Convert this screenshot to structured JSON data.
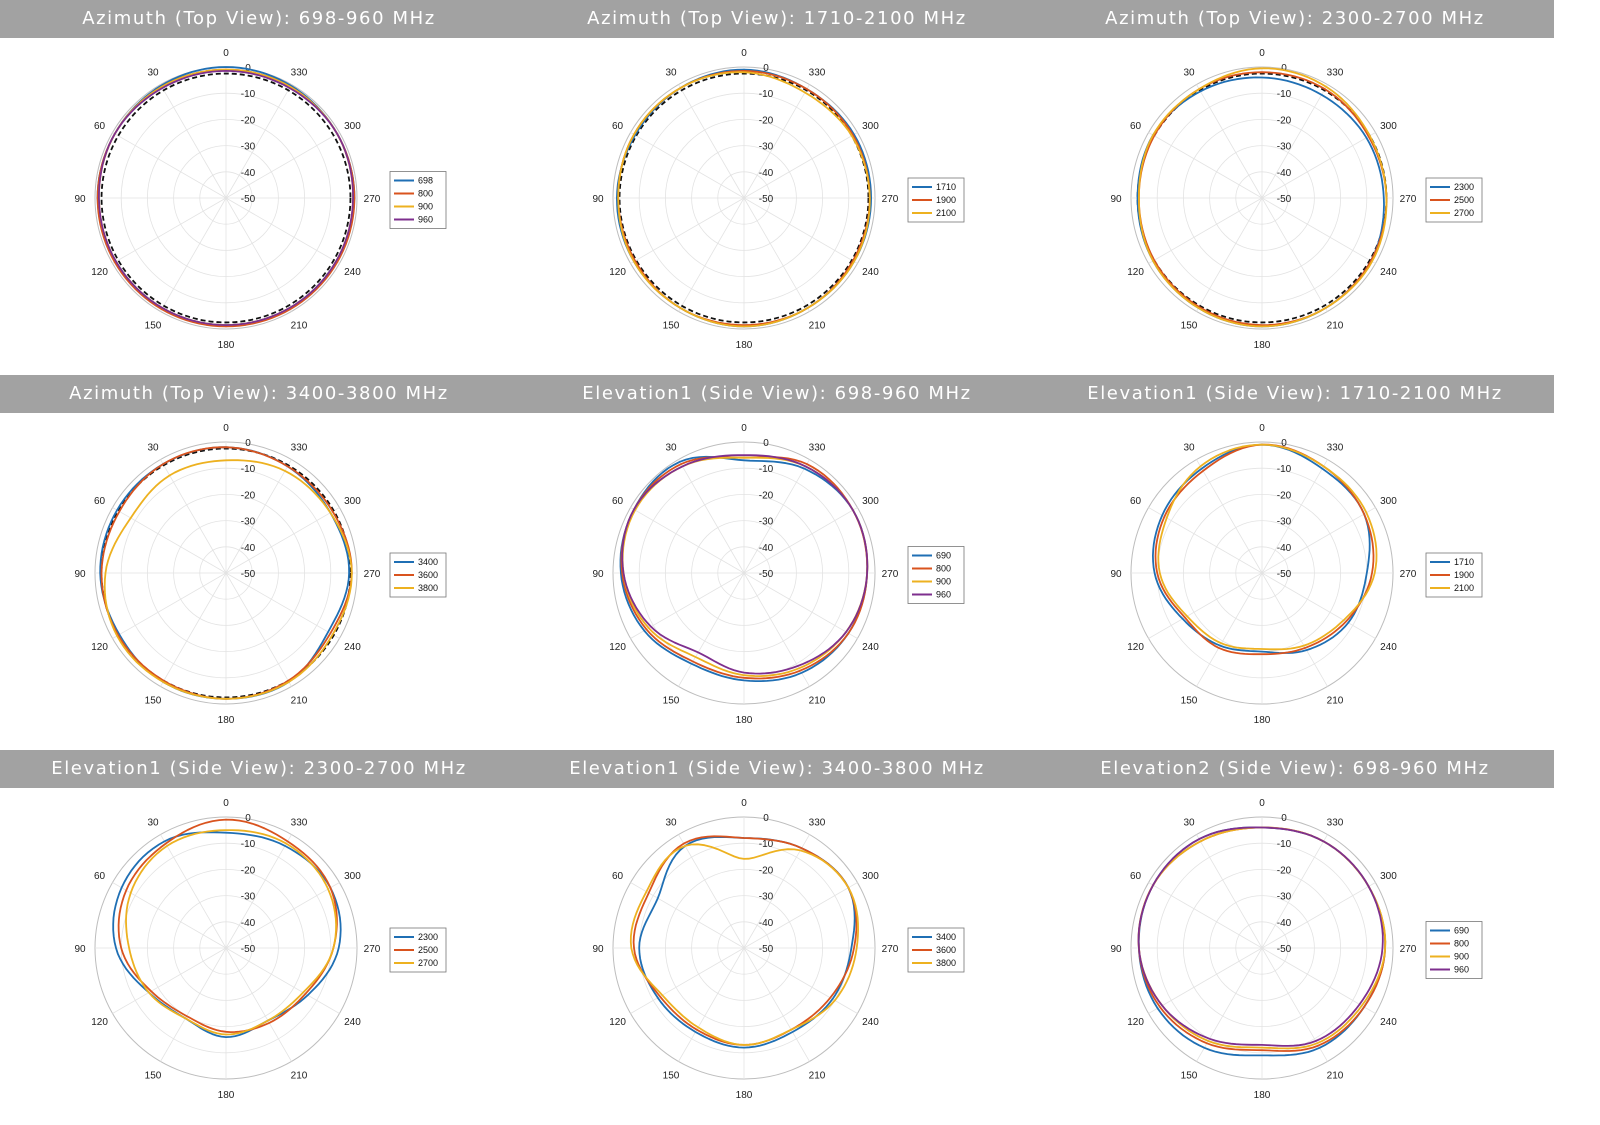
{
  "chart_data": [
    {
      "type": "line",
      "subtype": "polar",
      "title": "Azimuth (Top View): 698-960 MHz",
      "theta_ticks": [
        "0",
        "30",
        "60",
        "90",
        "120",
        "150",
        "180",
        "210",
        "240",
        "270",
        "300",
        "330"
      ],
      "r_ticks": [
        "0",
        "-10",
        "-20",
        "-30",
        "-40",
        "-50"
      ],
      "r_range": [
        -50,
        0
      ],
      "grid": true,
      "legend_position": "right",
      "reference_dashed_circle_db": -2.5,
      "series": [
        {
          "name": "698",
          "color": "#1f6fb4",
          "r": [
            0,
            -0.5,
            -1,
            -1,
            -1.5,
            -1.5,
            -1.5,
            -1.5,
            -1.5,
            -1,
            -1,
            -0.5
          ]
        },
        {
          "name": "800",
          "color": "#d9531e",
          "r": [
            -1,
            -1,
            -1,
            -1,
            -1,
            -1,
            -1,
            -1,
            -1,
            -1,
            -1,
            -1
          ]
        },
        {
          "name": "900",
          "color": "#edb120",
          "r": [
            -1,
            -1,
            -1,
            -1.5,
            -1.5,
            -1.5,
            -1.5,
            -1.5,
            -1.5,
            -1.5,
            -1,
            -1
          ]
        },
        {
          "name": "960",
          "color": "#7e2f8e",
          "r": [
            -1.5,
            -1.5,
            -1,
            -1.5,
            -1.5,
            -1.5,
            -1.5,
            -1.5,
            -1.5,
            -1.5,
            -1,
            -1.5
          ]
        }
      ]
    },
    {
      "type": "line",
      "subtype": "polar",
      "title": "Azimuth (Top View): 1710-2100 MHz",
      "theta_ticks": [
        "0",
        "30",
        "60",
        "90",
        "120",
        "150",
        "180",
        "210",
        "240",
        "270",
        "300",
        "330"
      ],
      "r_ticks": [
        "0",
        "-10",
        "-20",
        "-30",
        "-40",
        "-50"
      ],
      "r_range": [
        -50,
        0
      ],
      "grid": true,
      "legend_position": "right",
      "reference_dashed_circle_db": -2.5,
      "series": [
        {
          "name": "1710",
          "color": "#1f6fb4",
          "r": [
            -1,
            -1.5,
            -2,
            -1.5,
            -1.5,
            -1.5,
            -1,
            -1.5,
            -1.5,
            -1.5,
            -1.5,
            -2
          ]
        },
        {
          "name": "1900",
          "color": "#d9531e",
          "r": [
            -1.5,
            -1.5,
            -1.5,
            -2,
            -2,
            -1.5,
            -1.5,
            -1.5,
            -2,
            -2,
            -2,
            -2
          ]
        },
        {
          "name": "2100",
          "color": "#edb120",
          "r": [
            -2,
            -1.5,
            -1.5,
            -2,
            -1.5,
            -1.5,
            -1,
            -1.5,
            -1.5,
            -2,
            -2.5,
            -3.5
          ]
        }
      ]
    },
    {
      "type": "line",
      "subtype": "polar",
      "title": "Azimuth (Top View): 2300-2700 MHz",
      "theta_ticks": [
        "0",
        "30",
        "60",
        "90",
        "120",
        "150",
        "180",
        "210",
        "240",
        "270",
        "300",
        "330"
      ],
      "r_ticks": [
        "0",
        "-10",
        "-20",
        "-30",
        "-40",
        "-50"
      ],
      "r_range": [
        -50,
        0
      ],
      "grid": true,
      "legend_position": "right",
      "reference_dashed_circle_db": -2.5,
      "series": [
        {
          "name": "2300",
          "color": "#1f6fb4",
          "r": [
            -4,
            -3,
            -2,
            -2.5,
            -2,
            -1.5,
            -1,
            -1.5,
            -2,
            -3.5,
            -4,
            -4.5
          ]
        },
        {
          "name": "2500",
          "color": "#d9531e",
          "r": [
            -2,
            -2,
            -2.5,
            -3,
            -2.5,
            -2,
            -1.5,
            -1.5,
            -2,
            -2.5,
            -3,
            -2
          ]
        },
        {
          "name": "2700",
          "color": "#edb120",
          "r": [
            -0.5,
            -2,
            -2,
            -3,
            -2,
            -1.5,
            -1,
            -1.5,
            -1.5,
            -2.5,
            -2.5,
            -1
          ]
        }
      ]
    },
    {
      "type": "line",
      "subtype": "polar",
      "title": "Azimuth (Top View): 3400-3800 MHz",
      "theta_ticks": [
        "0",
        "30",
        "60",
        "90",
        "120",
        "150",
        "180",
        "210",
        "240",
        "270",
        "300",
        "330"
      ],
      "r_ticks": [
        "0",
        "-10",
        "-20",
        "-30",
        "-40",
        "-50"
      ],
      "r_range": [
        -50,
        0
      ],
      "grid": true,
      "legend_position": "right",
      "reference_dashed_circle_db": -2.5,
      "series": [
        {
          "name": "3400",
          "color": "#1f6fb4",
          "r": [
            -2,
            -2,
            -2,
            -2,
            -3,
            -2,
            -2,
            -2,
            -5,
            -3,
            -4,
            -3
          ]
        },
        {
          "name": "3600",
          "color": "#d9531e",
          "r": [
            -2,
            -2,
            -3,
            -2.5,
            -2.5,
            -2.5,
            -2,
            -2.5,
            -4,
            -2,
            -3,
            -3
          ]
        },
        {
          "name": "3800",
          "color": "#edb120",
          "r": [
            -7,
            -7,
            -8,
            -4,
            -2,
            -2,
            -2,
            -2,
            -3,
            -2,
            -4,
            -5
          ]
        }
      ]
    },
    {
      "type": "line",
      "subtype": "polar",
      "title": "Elevation1 (Side View): 698-960 MHz",
      "theta_ticks": [
        "0",
        "30",
        "60",
        "90",
        "120",
        "150",
        "180",
        "210",
        "240",
        "270",
        "300",
        "330"
      ],
      "r_ticks": [
        "0",
        "-10",
        "-20",
        "-30",
        "-40",
        "-50"
      ],
      "r_range": [
        -50,
        0
      ],
      "grid": true,
      "legend_position": "right",
      "series": [
        {
          "name": "690",
          "color": "#1f6fb4",
          "r": [
            -7,
            -1,
            -1.5,
            -3,
            -6,
            -10,
            -9,
            -6,
            -4,
            -3,
            -2,
            -4
          ]
        },
        {
          "name": "800",
          "color": "#d9531e",
          "r": [
            -6,
            -2,
            -1.5,
            -3.5,
            -7,
            -11,
            -10,
            -7,
            -4,
            -3,
            -2,
            -2
          ]
        },
        {
          "name": "900",
          "color": "#edb120",
          "r": [
            -6,
            -3,
            -2,
            -4,
            -8,
            -13,
            -11,
            -8,
            -5,
            -3,
            -2,
            -3
          ]
        },
        {
          "name": "960",
          "color": "#7e2f8e",
          "r": [
            -5,
            -3,
            -1.5,
            -4,
            -9,
            -15,
            -12,
            -9,
            -5,
            -3,
            -2,
            -3
          ]
        }
      ]
    },
    {
      "type": "line",
      "subtype": "polar",
      "title": "Elevation1 (Side View): 1710-2100 MHz",
      "theta_ticks": [
        "0",
        "30",
        "60",
        "90",
        "120",
        "150",
        "180",
        "210",
        "240",
        "270",
        "300",
        "330"
      ],
      "r_ticks": [
        "0",
        "-10",
        "-20",
        "-30",
        "-40",
        "-50"
      ],
      "r_range": [
        -50,
        0
      ],
      "grid": true,
      "legend_position": "right",
      "series": [
        {
          "name": "1710",
          "color": "#1f6fb4",
          "r": [
            -1,
            -4,
            -6,
            -9,
            -15,
            -18,
            -20,
            -16,
            -12,
            -10,
            -5,
            -4
          ]
        },
        {
          "name": "1900",
          "color": "#d9531e",
          "r": [
            -1,
            -5,
            -7,
            -10,
            -16,
            -17,
            -19,
            -17,
            -13,
            -8,
            -5,
            -3
          ]
        },
        {
          "name": "2100",
          "color": "#edb120",
          "r": [
            -1,
            -3,
            -8,
            -11,
            -17,
            -19,
            -21,
            -18,
            -14,
            -7,
            -4,
            -3
          ]
        }
      ]
    },
    {
      "type": "line",
      "subtype": "polar",
      "title": "Elevation1 (Side View): 2300-2700 MHz",
      "theta_ticks": [
        "0",
        "30",
        "60",
        "90",
        "120",
        "150",
        "180",
        "210",
        "240",
        "270",
        "300",
        "330"
      ],
      "r_ticks": [
        "0",
        "-10",
        "-20",
        "-30",
        "-40",
        "-50"
      ],
      "r_range": [
        -50,
        0
      ],
      "grid": true,
      "legend_position": "right",
      "series": [
        {
          "name": "2300",
          "color": "#1f6fb4",
          "r": [
            -6,
            -3,
            -4,
            -8,
            -16,
            -19,
            -16,
            -18,
            -14,
            -7,
            -4,
            -5
          ]
        },
        {
          "name": "2500",
          "color": "#d9531e",
          "r": [
            -1,
            -4,
            -6,
            -10,
            -17,
            -20,
            -18,
            -17,
            -15,
            -9,
            -4,
            -3
          ]
        },
        {
          "name": "2700",
          "color": "#edb120",
          "r": [
            -5,
            -5,
            -8,
            -13,
            -16,
            -19,
            -17,
            -18,
            -16,
            -9,
            -5,
            -4
          ]
        }
      ]
    },
    {
      "type": "line",
      "subtype": "polar",
      "title": "Elevation1 (Side View): 3400-3800 MHz",
      "theta_ticks": [
        "0",
        "30",
        "60",
        "90",
        "120",
        "150",
        "180",
        "210",
        "240",
        "270",
        "300",
        "330"
      ],
      "r_ticks": [
        "0",
        "-10",
        "-20",
        "-30",
        "-40",
        "-50"
      ],
      "r_range": [
        -50,
        0
      ],
      "grid": true,
      "legend_position": "right",
      "series": [
        {
          "name": "3400",
          "color": "#1f6fb4",
          "r": [
            -8,
            -5,
            -12,
            -10,
            -12,
            -13,
            -12,
            -13,
            -11,
            -9,
            -4,
            -6
          ]
        },
        {
          "name": "3600",
          "color": "#d9531e",
          "r": [
            -8,
            -4,
            -8,
            -8,
            -13,
            -14,
            -13,
            -14,
            -12,
            -8,
            -4,
            -6
          ]
        },
        {
          "name": "3800",
          "color": "#edb120",
          "r": [
            -16,
            -5,
            -7,
            -7,
            -14,
            -15,
            -13,
            -14,
            -10,
            -7,
            -4,
            -7
          ]
        }
      ]
    },
    {
      "type": "line",
      "subtype": "polar",
      "title": "Elevation2 (Side View): 698-960 MHz",
      "theta_ticks": [
        "0",
        "30",
        "60",
        "90",
        "120",
        "150",
        "180",
        "210",
        "240",
        "270",
        "300",
        "330"
      ],
      "r_ticks": [
        "0",
        "-10",
        "-20",
        "-30",
        "-40",
        "-50"
      ],
      "r_range": [
        -50,
        0
      ],
      "grid": true,
      "legend_position": "right",
      "series": [
        {
          "name": "690",
          "color": "#1f6fb4",
          "r": [
            -4,
            -2,
            -2,
            -3,
            -4,
            -6,
            -9,
            -6,
            -5,
            -3,
            -3,
            -3
          ]
        },
        {
          "name": "800",
          "color": "#d9531e",
          "r": [
            -4,
            -3,
            -2,
            -3,
            -5,
            -8,
            -11,
            -7,
            -5,
            -3,
            -3,
            -3
          ]
        },
        {
          "name": "900",
          "color": "#edb120",
          "r": [
            -4,
            -3,
            -2,
            -3,
            -6,
            -9,
            -12,
            -8,
            -6,
            -3,
            -3,
            -3
          ]
        },
        {
          "name": "960",
          "color": "#7e2f8e",
          "r": [
            -4,
            -2,
            -2,
            -3,
            -6,
            -10,
            -13,
            -9,
            -7,
            -4,
            -3,
            -3
          ]
        }
      ]
    }
  ]
}
